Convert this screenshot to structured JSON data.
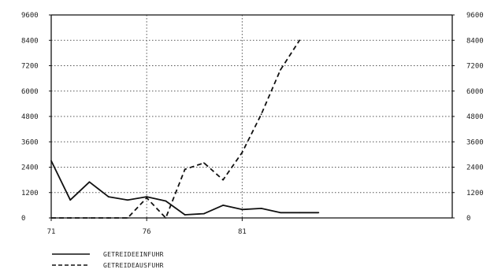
{
  "chart_data": {
    "type": "line",
    "title": "",
    "xlabel": "",
    "ylabel": "",
    "x": [
      71,
      72,
      73,
      74,
      75,
      76,
      77,
      78,
      79,
      80,
      81,
      82,
      83,
      84,
      85
    ],
    "x_ticks": [
      71,
      76,
      81
    ],
    "xlim": [
      71,
      92
    ],
    "ylim": [
      0,
      9600
    ],
    "y_ticks": [
      0,
      1200,
      2400,
      3600,
      4800,
      6000,
      7200,
      8400,
      9600
    ],
    "grid": "dotted",
    "legend": "bottom-left",
    "series": [
      {
        "name": "GETREIDEEINFUHR",
        "style": "solid",
        "values": [
          2700,
          850,
          1700,
          1000,
          850,
          1000,
          800,
          150,
          200,
          600,
          400,
          450,
          250,
          250,
          250
        ]
      },
      {
        "name": "GETREIDEAUSFUHR",
        "style": "dashed",
        "values": [
          0,
          0,
          0,
          0,
          0,
          950,
          0,
          2300,
          2600,
          1800,
          3100,
          4900,
          7000,
          8400,
          null
        ]
      }
    ]
  },
  "colors": {
    "line": "#111111",
    "grid": "#555555",
    "axis": "#111111"
  }
}
